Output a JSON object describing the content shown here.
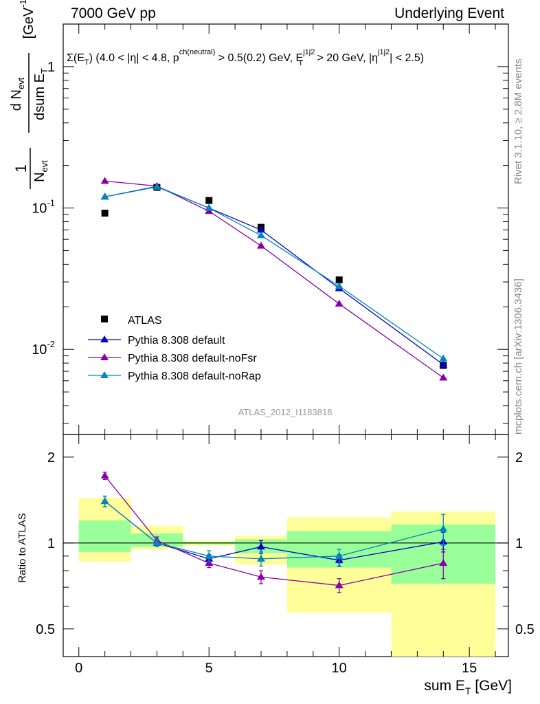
{
  "header": {
    "left": "7000 GeV pp",
    "right": "Underlying Event"
  },
  "side_labels": {
    "rivet": "Rivet 3.1.10, ≥ 2.8M events",
    "mcplots": "mcplots.cern.ch [arXiv:1306.3436]"
  },
  "watermark": "ATLAS_2012_I1183818",
  "chart_data": [
    {
      "type": "scatter",
      "title": "Σ(E_T) (4.0 < |η| < 4.8, p^ch(neutral) > 0.5(0.2) GeV, E_T^j1j2 > 20 GeV, |η^j1j2| < 2.5)",
      "ylabel": "1/N_evt dN_evt/dsum E_T [GeV^-1]",
      "yscale": "log",
      "xlim": [
        -0.6,
        16.5
      ],
      "ylim": [
        0.0025,
        2.0
      ],
      "y_ticks": [
        {
          "v": 0.01,
          "label": "10^-2"
        },
        {
          "v": 0.1,
          "label": "10^-1"
        },
        {
          "v": 1,
          "label": "1"
        }
      ],
      "legend_position": "lower-left",
      "series": [
        {
          "name": "ATLAS",
          "color": "#000000",
          "marker": "square",
          "x": [
            1,
            3,
            5,
            7,
            10,
            14
          ],
          "y": [
            0.092,
            0.14,
            0.113,
            0.073,
            0.031,
            0.0077
          ]
        },
        {
          "name": "Pythia 8.308 default",
          "color": "#0000cc",
          "marker": "triangle",
          "x": [
            1,
            3,
            5,
            7,
            10,
            14
          ],
          "y": [
            0.12,
            0.142,
            0.1,
            0.07,
            0.027,
            0.0078
          ]
        },
        {
          "name": "Pythia 8.308 default-noFsr",
          "color": "#8800aa",
          "marker": "triangle",
          "x": [
            1,
            3,
            5,
            7,
            10,
            14
          ],
          "y": [
            0.155,
            0.143,
            0.095,
            0.054,
            0.021,
            0.0063
          ]
        },
        {
          "name": "Pythia 8.308 default-noRap",
          "color": "#0088bb",
          "marker": "triangle",
          "x": [
            1,
            3,
            5,
            7,
            10,
            14
          ],
          "y": [
            0.12,
            0.141,
            0.1,
            0.064,
            0.028,
            0.0086
          ]
        }
      ]
    },
    {
      "type": "scatter",
      "ylabel": "Ratio to ATLAS",
      "xlabel": "sum E_T [GeV]",
      "yscale": "log",
      "xlim": [
        -0.6,
        16.5
      ],
      "ylim": [
        0.4,
        2.4
      ],
      "x_ticks": [
        0,
        5,
        10,
        15
      ],
      "y_ticks": [
        0.5,
        1,
        2
      ],
      "bands": {
        "x_edges": [
          0,
          2,
          4,
          6,
          8,
          12,
          16
        ],
        "yellow_low": [
          0.86,
          0.95,
          0.98,
          0.84,
          0.57,
          0.38
        ],
        "yellow_high": [
          1.44,
          1.15,
          1.02,
          1.06,
          1.23,
          1.29
        ],
        "green_low": [
          0.93,
          0.97,
          0.99,
          0.92,
          0.82,
          0.72
        ],
        "green_high": [
          1.2,
          1.08,
          1.01,
          1.03,
          1.1,
          1.16
        ]
      },
      "series": [
        {
          "name": "Pythia 8.308 default",
          "color": "#0000cc",
          "x": [
            1,
            3,
            5,
            7,
            10,
            14
          ],
          "y": [
            1.4,
            1.0,
            0.88,
            0.97,
            0.87,
            1.01
          ],
          "err": [
            0.06,
            0.03,
            0.03,
            0.05,
            0.04,
            0.08
          ]
        },
        {
          "name": "Pythia 8.308 default-noFsr",
          "color": "#8800aa",
          "x": [
            1,
            3,
            5,
            7,
            10,
            14
          ],
          "y": [
            1.72,
            1.02,
            0.85,
            0.76,
            0.71,
            0.85
          ],
          "err": [
            0.05,
            0.03,
            0.03,
            0.04,
            0.04,
            0.1
          ]
        },
        {
          "name": "Pythia 8.308 default-noRap",
          "color": "#0088bb",
          "x": [
            1,
            3,
            5,
            7,
            10,
            14
          ],
          "y": [
            1.4,
            1.0,
            0.9,
            0.88,
            0.9,
            1.12
          ],
          "err": [
            0.06,
            0.03,
            0.04,
            0.05,
            0.05,
            0.14
          ]
        }
      ]
    }
  ]
}
